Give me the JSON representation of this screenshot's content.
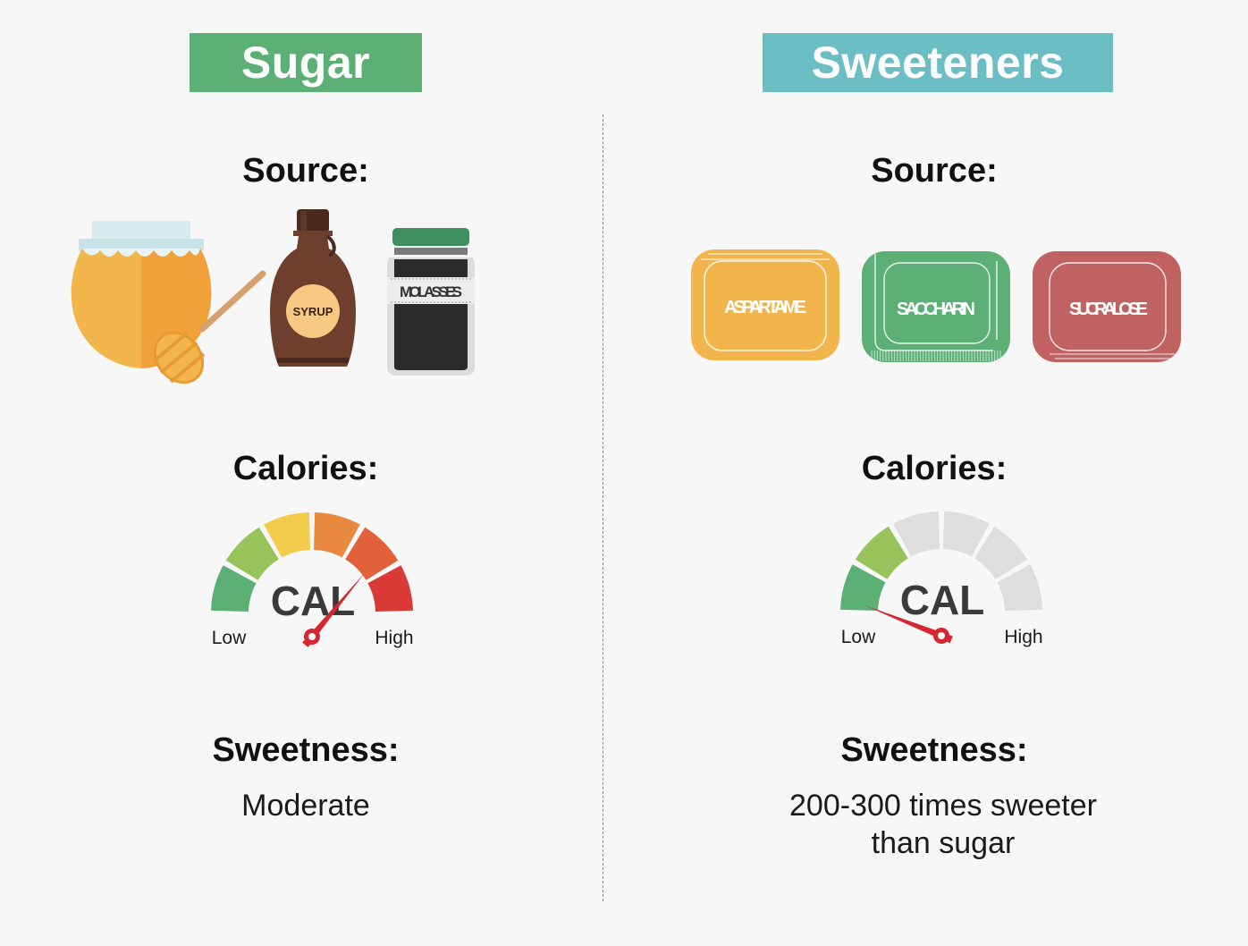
{
  "sugar": {
    "title": "Sugar",
    "source_label": "Source:",
    "sources": [
      {
        "icon": "honey-jar-icon"
      },
      {
        "icon": "syrup-bottle-icon",
        "label": "SYRUP"
      },
      {
        "icon": "molasses-jar-icon",
        "label": "MOLASSES"
      }
    ],
    "calories_label": "Calories:",
    "gauge": {
      "center_text": "CAL",
      "low_label": "Low",
      "high_label": "High",
      "level": 0.72
    },
    "sweetness_label": "Sweetness:",
    "sweetness_value": "Moderate"
  },
  "sweeteners": {
    "title": "Sweeteners",
    "source_label": "Source:",
    "packets": [
      {
        "label": "ASPARTAME",
        "color": "#f2b54b"
      },
      {
        "label": "SACCHARIN",
        "color": "#5cb075"
      },
      {
        "label": "SUCRALOSE",
        "color": "#c06262"
      }
    ],
    "calories_label": "Calories:",
    "gauge": {
      "center_text": "CAL",
      "low_label": "Low",
      "high_label": "High",
      "level": 0.12
    },
    "sweetness_label": "Sweetness:",
    "sweetness_value_line1": "200-300 times sweeter",
    "sweetness_value_line2": "than sugar"
  },
  "colors": {
    "sugar_banner": "#5cb075",
    "sweeteners_banner": "#6bbfc4",
    "gauge_segments": [
      "#5cb075",
      "#97c35a",
      "#f4cc4c",
      "#e9893f",
      "#e2613a",
      "#d93a35"
    ],
    "gauge_inactive": "#dedede",
    "needle": "#d6262f"
  }
}
